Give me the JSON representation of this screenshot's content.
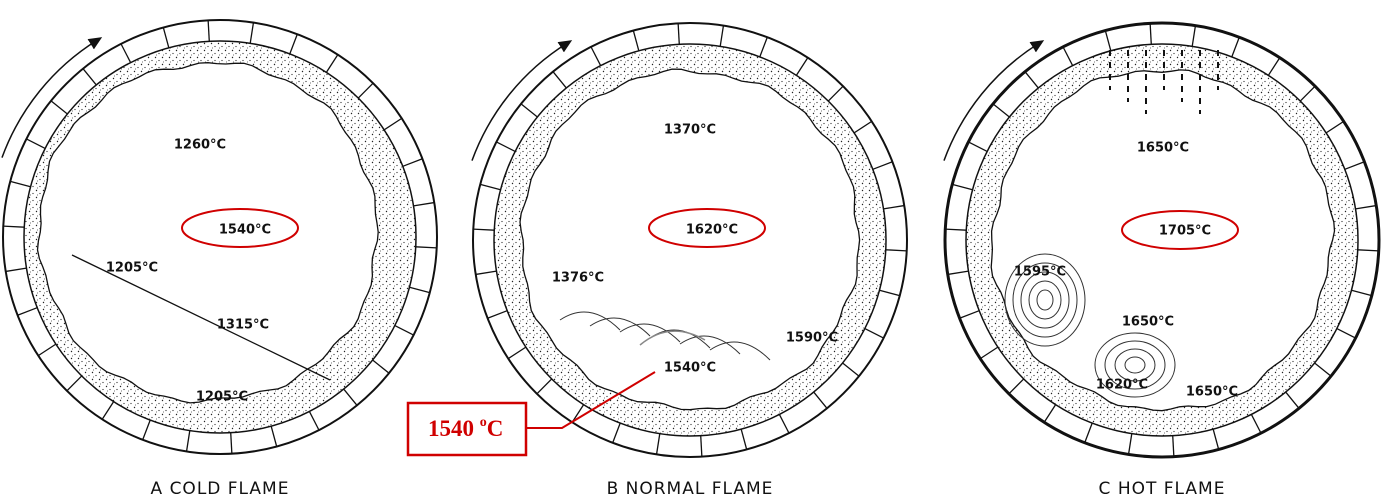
{
  "panels": [
    {
      "caption": "A COLD FLAME",
      "labels": [
        "1260°C",
        "1540°C",
        "1205°C",
        "1315°C",
        "1205°C"
      ]
    },
    {
      "caption": "B NORMAL FLAME",
      "labels": [
        "1370°C",
        "1620°C",
        "1376°C",
        "1540°C",
        "1590°C"
      ]
    },
    {
      "caption": "C HOT FLAME",
      "labels": [
        "1650°C",
        "1705°C",
        "1595°C",
        "1650°C",
        "1620°C",
        "1650°C"
      ]
    }
  ],
  "callout": {
    "number": "1540 ",
    "sup": "o",
    "unit": "C"
  }
}
